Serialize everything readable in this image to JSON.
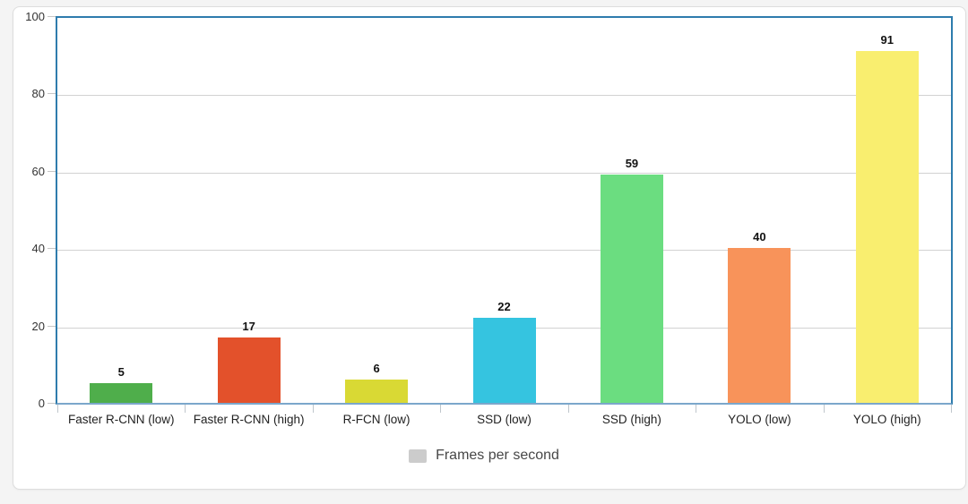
{
  "chart_data": {
    "type": "bar",
    "categories": [
      "Faster R-CNN (low)",
      "Faster R-CNN (high)",
      "R-FCN (low)",
      "SSD (low)",
      "SSD (high)",
      "YOLO (low)",
      "YOLO (high)"
    ],
    "values": [
      5,
      17,
      6,
      22,
      59,
      40,
      91
    ],
    "bar_colors": [
      "#4fae4b",
      "#e3512b",
      "#d9d934",
      "#35c4e0",
      "#6bdd80",
      "#f8935a",
      "#f9ee6f"
    ],
    "title": "",
    "xlabel": "",
    "ylabel": "",
    "ylim": [
      0,
      100
    ],
    "yticks": [
      0,
      20,
      40,
      60,
      80,
      100
    ],
    "grid": true,
    "legend_position": "bottom"
  },
  "legend": {
    "label": "Frames per second",
    "swatch_color": "#cccccc"
  },
  "style": {
    "plot_border_color": "#2e7cad",
    "plot_bottom_border_color": "#7ba7cb",
    "gridline_color": "#d2d2d2",
    "card_background": "#ffffff",
    "page_background": "#f4f4f4"
  }
}
